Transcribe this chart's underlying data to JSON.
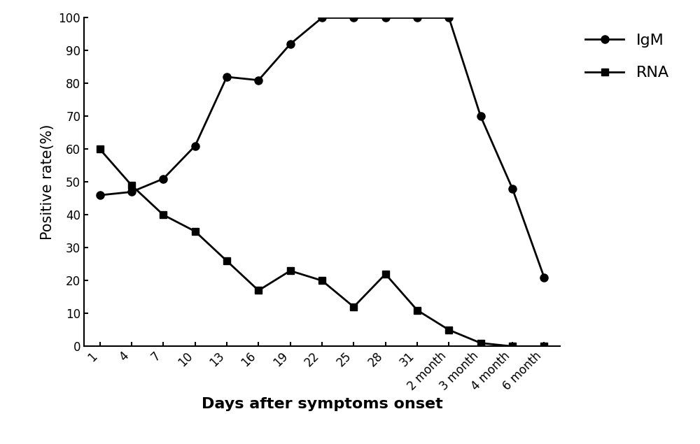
{
  "igm_y": [
    46,
    47,
    51,
    61,
    82,
    81,
    92,
    100,
    100,
    100,
    100,
    100,
    70,
    48,
    21
  ],
  "rna_y": [
    60,
    49,
    40,
    35,
    26,
    17,
    23,
    20,
    12,
    22,
    11,
    5,
    1,
    0,
    0
  ],
  "x_tick_labels": [
    "1",
    "4",
    "7",
    "10",
    "13",
    "16",
    "19",
    "22",
    "25",
    "28",
    "31",
    "2 month",
    "3 month",
    "4 month",
    "6 month"
  ],
  "ylabel": "Positive rate(%)",
  "xlabel": "Days after symptoms onset",
  "ylim": [
    0,
    100
  ],
  "yticks": [
    0,
    10,
    20,
    30,
    40,
    50,
    60,
    70,
    80,
    90,
    100
  ],
  "igm_label": "IgM",
  "rna_label": "RNA",
  "line_color": "#000000",
  "igm_marker": "o",
  "rna_marker": "s",
  "markersize": 8,
  "linewidth": 2.0,
  "label_fontsize": 15,
  "tick_fontsize": 12,
  "legend_fontsize": 16
}
